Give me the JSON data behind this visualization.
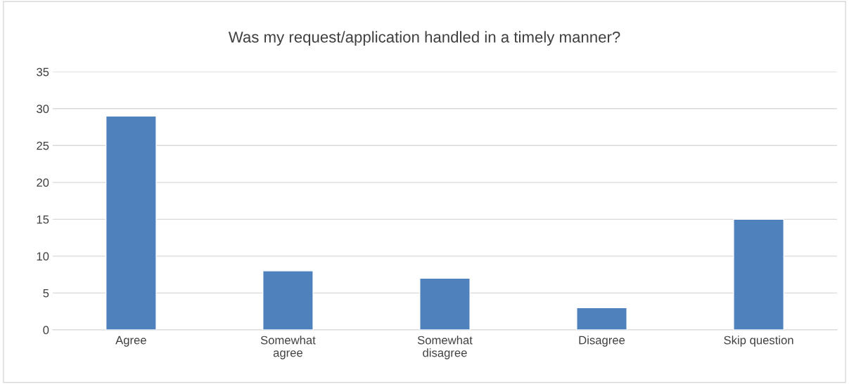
{
  "chart_data": {
    "type": "bar",
    "title": "Was my request/application handled in a timely manner?",
    "categories": [
      "Agree",
      "Somewhat agree",
      "Somewhat disagree",
      "Disagree",
      "Skip question"
    ],
    "values": [
      29,
      8,
      7,
      3,
      15
    ],
    "color": "#4f81bd",
    "ylim": [
      0,
      35
    ],
    "yticks": [
      0,
      5,
      10,
      15,
      20,
      25,
      30,
      35
    ],
    "grid": "y",
    "legend": false
  }
}
